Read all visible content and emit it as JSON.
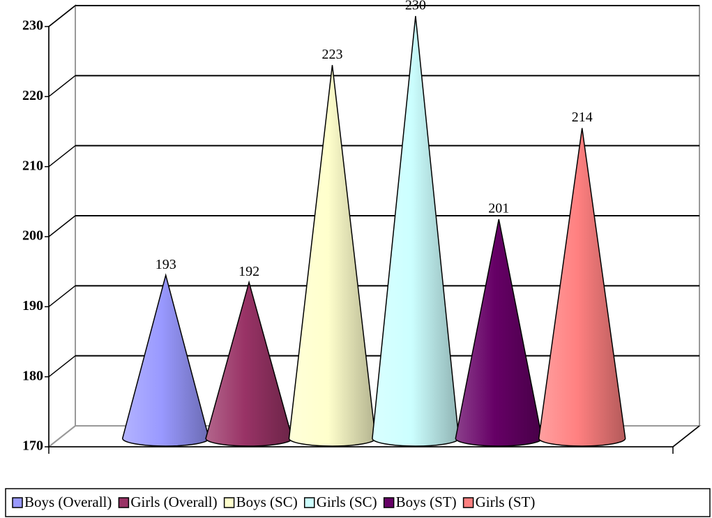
{
  "chart_data": {
    "type": "cone",
    "series": [
      {
        "name": "Boys (Overall)",
        "color": "#9999ff",
        "values": [
          193
        ]
      },
      {
        "name": "Girls (Overall)",
        "color": "#993366",
        "values": [
          192
        ]
      },
      {
        "name": "Boys (SC)",
        "color": "#ffffcc",
        "values": [
          223
        ]
      },
      {
        "name": "Girls (SC)",
        "color": "#ccffff",
        "values": [
          230
        ]
      },
      {
        "name": "Boys (ST)",
        "color": "#660066",
        "values": [
          201
        ]
      },
      {
        "name": "Girls (ST)",
        "color": "#ff8080",
        "values": [
          214
        ]
      }
    ],
    "ylim": [
      170,
      230
    ],
    "yticks": [
      170,
      180,
      190,
      200,
      210,
      220,
      230
    ],
    "grid": true,
    "legend": "bottom"
  }
}
